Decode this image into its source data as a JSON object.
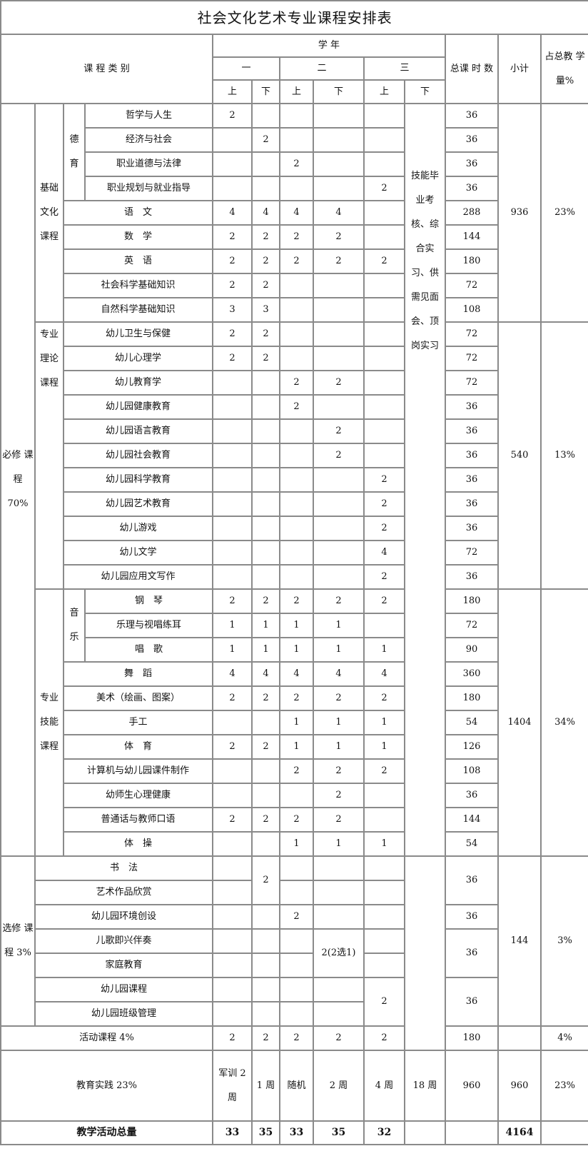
{
  "title": "社会文化艺术专业课程安排表",
  "header": {
    "category": "课 程 类 别",
    "school_year": "学 年",
    "years": [
      "一",
      "二",
      "三"
    ],
    "terms": [
      "上",
      "下",
      "上",
      "下",
      "上",
      "下"
    ],
    "total_hours": "总课 时 数",
    "subtotal": "小计",
    "percent": "占总教 学量%"
  },
  "required": {
    "label": "必修 课程 70%",
    "skill_exam": "技能毕 业考 核、综 合实 习、供 需见面 会、顶 岗实习",
    "groups": [
      {
        "label": "基础 文化 课程",
        "subtotal": "936",
        "percent": "23%",
        "sub": "德 育"
      },
      {
        "label": "专业 理论 课程",
        "subtotal": "540",
        "percent": "13%"
      },
      {
        "label": "专业 技能 课程",
        "subtotal": "1404",
        "percent": "34%",
        "sub": "音 乐"
      }
    ],
    "rows": [
      {
        "name": "哲学与人生",
        "v": [
          "2",
          "",
          "",
          "",
          ""
        ],
        "total": "36"
      },
      {
        "name": "经济与社会",
        "v": [
          "",
          "2",
          "",
          "",
          ""
        ],
        "total": "36"
      },
      {
        "name": "职业道德与法律",
        "v": [
          "",
          "",
          "2",
          "",
          ""
        ],
        "total": "36"
      },
      {
        "name": "职业规划与就业指导",
        "v": [
          "",
          "",
          "",
          "",
          "2"
        ],
        "total": "36"
      },
      {
        "name": "语　文",
        "v": [
          "4",
          "4",
          "4",
          "4",
          ""
        ],
        "total": "288"
      },
      {
        "name": "数　学",
        "v": [
          "2",
          "2",
          "2",
          "2",
          ""
        ],
        "total": "144"
      },
      {
        "name": "英　语",
        "v": [
          "2",
          "2",
          "2",
          "2",
          "2"
        ],
        "total": "180"
      },
      {
        "name": "社会科学基础知识",
        "v": [
          "2",
          "2",
          "",
          "",
          ""
        ],
        "total": "72"
      },
      {
        "name": "自然科学基础知识",
        "v": [
          "3",
          "3",
          "",
          "",
          ""
        ],
        "total": "108"
      },
      {
        "name": "幼儿卫生与保健",
        "v": [
          "2",
          "2",
          "",
          "",
          ""
        ],
        "total": "72"
      },
      {
        "name": "幼儿心理学",
        "v": [
          "2",
          "2",
          "",
          "",
          ""
        ],
        "total": "72"
      },
      {
        "name": "幼儿教育学",
        "v": [
          "",
          "",
          "2",
          "2",
          ""
        ],
        "total": "72"
      },
      {
        "name": "幼儿园健康教育",
        "v": [
          "",
          "",
          "2",
          "",
          ""
        ],
        "total": "36"
      },
      {
        "name": "幼儿园语言教育",
        "v": [
          "",
          "",
          "",
          "2",
          ""
        ],
        "total": "36"
      },
      {
        "name": "幼儿园社会教育",
        "v": [
          "",
          "",
          "",
          "2",
          ""
        ],
        "total": "36"
      },
      {
        "name": "幼儿园科学教育",
        "v": [
          "",
          "",
          "",
          "",
          "2"
        ],
        "total": "36"
      },
      {
        "name": "幼儿园艺术教育",
        "v": [
          "",
          "",
          "",
          "",
          "2"
        ],
        "total": "36"
      },
      {
        "name": "幼儿游戏",
        "v": [
          "",
          "",
          "",
          "",
          "2"
        ],
        "total": "36"
      },
      {
        "name": "幼儿文学",
        "v": [
          "",
          "",
          "",
          "",
          "4"
        ],
        "total": "72"
      },
      {
        "name": "幼儿园应用文写作",
        "v": [
          "",
          "",
          "",
          "",
          "2"
        ],
        "total": "36"
      },
      {
        "name": "钢　琴",
        "v": [
          "2",
          "2",
          "2",
          "2",
          "2"
        ],
        "total": "180"
      },
      {
        "name": "乐理与视唱练耳",
        "v": [
          "1",
          "1",
          "1",
          "1",
          ""
        ],
        "total": "72"
      },
      {
        "name": "唱　歌",
        "v": [
          "1",
          "1",
          "1",
          "1",
          "1"
        ],
        "total": "90"
      },
      {
        "name": "舞　蹈",
        "v": [
          "4",
          "4",
          "4",
          "4",
          "4"
        ],
        "total": "360"
      },
      {
        "name": "美术（绘画、图案）",
        "v": [
          "2",
          "2",
          "2",
          "2",
          "2"
        ],
        "total": "180"
      },
      {
        "name": "手工",
        "v": [
          "",
          "",
          "1",
          "1",
          "1"
        ],
        "total": "54"
      },
      {
        "name": "体　育",
        "v": [
          "2",
          "2",
          "1",
          "1",
          "1"
        ],
        "total": "126"
      },
      {
        "name": "计算机与幼儿园课件制作",
        "v": [
          "",
          "",
          "2",
          "2",
          "2"
        ],
        "total": "108"
      },
      {
        "name": "幼师生心理健康",
        "v": [
          "",
          "",
          "",
          "2",
          ""
        ],
        "total": "36"
      },
      {
        "name": "普通话与教师口语",
        "v": [
          "2",
          "2",
          "2",
          "2",
          ""
        ],
        "total": "144"
      },
      {
        "name": "体　操",
        "v": [
          "",
          "",
          "1",
          "1",
          "1"
        ],
        "total": "54"
      }
    ]
  },
  "elective": {
    "label": "选修 课程 3%",
    "subtotal": "144",
    "percent": "3%",
    "names": [
      "书　法",
      "艺术作品欣赏",
      "幼儿园环境创设",
      "儿歌即兴伴奏",
      "家庭教育",
      "幼儿园课程",
      "幼儿园班级管理"
    ],
    "pair1_term2": "2",
    "env_term3": "2",
    "pair2_term4": "2(2选1)",
    "pair3_term5": "2",
    "totals": [
      "36",
      "36",
      "36",
      "36"
    ]
  },
  "activity": {
    "label": "活动课程 4%",
    "v": [
      "2",
      "2",
      "2",
      "2",
      "2"
    ],
    "total": "180",
    "percent": "4%"
  },
  "practice": {
    "label": "教育实践 23%",
    "v": [
      "军训 2 周",
      "1 周",
      "随机",
      "2 周",
      "4 周",
      "18 周"
    ],
    "total": "960",
    "subtotal": "960",
    "percent": "23%"
  },
  "grand": {
    "label": "教学活动总量",
    "v": [
      "33",
      "35",
      "33",
      "35",
      "32"
    ],
    "subtotal": "4164"
  }
}
